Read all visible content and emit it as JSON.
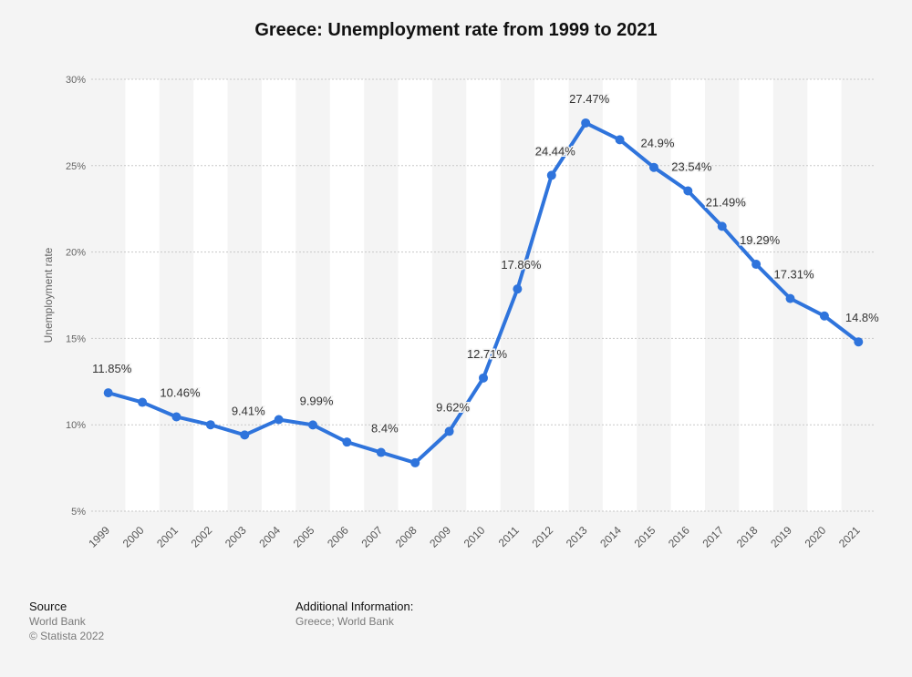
{
  "title": "Greece: Unemployment rate from 1999 to 2021",
  "footer": {
    "source_heading": "Source",
    "source_lines": [
      "World Bank",
      "© Statista 2022"
    ],
    "additional_heading": "Additional Information:",
    "additional_text": "Greece; World Bank"
  },
  "colors": {
    "series": "#2f74dc",
    "background": "#f4f4f4",
    "band": "#ffffff",
    "grid": "#c8c8c8"
  },
  "chart_data": {
    "type": "line",
    "title": "Greece: Unemployment rate from 1999 to 2021",
    "xlabel": "",
    "ylabel": "Unemployment rate",
    "ylim": [
      5,
      30
    ],
    "yticks": [
      5,
      10,
      15,
      20,
      25,
      30
    ],
    "ytick_labels": [
      "5%",
      "10%",
      "15%",
      "20%",
      "25%",
      "30%"
    ],
    "grid": true,
    "legend": "none",
    "categories": [
      "1999",
      "2000",
      "2001",
      "2002",
      "2003",
      "2004",
      "2005",
      "2006",
      "2007",
      "2008",
      "2009",
      "2010",
      "2011",
      "2012",
      "2013",
      "2014",
      "2015",
      "2016",
      "2017",
      "2018",
      "2019",
      "2020",
      "2021"
    ],
    "series": [
      {
        "values": [
          11.85,
          11.3,
          10.46,
          10.0,
          9.41,
          10.3,
          9.99,
          9.0,
          8.4,
          7.8,
          9.62,
          12.71,
          17.86,
          24.44,
          27.47,
          26.5,
          24.9,
          23.54,
          21.49,
          19.29,
          17.31,
          16.3,
          14.8
        ],
        "data_labels": [
          "11.85%",
          null,
          "10.46%",
          null,
          "9.41%",
          null,
          "9.99%",
          null,
          "8.4%",
          null,
          "9.62%",
          "12.71%",
          "17.86%",
          "24.44%",
          "27.47%",
          null,
          "24.9%",
          "23.54%",
          "21.49%",
          "19.29%",
          "17.31%",
          null,
          "14.8%"
        ]
      }
    ]
  }
}
